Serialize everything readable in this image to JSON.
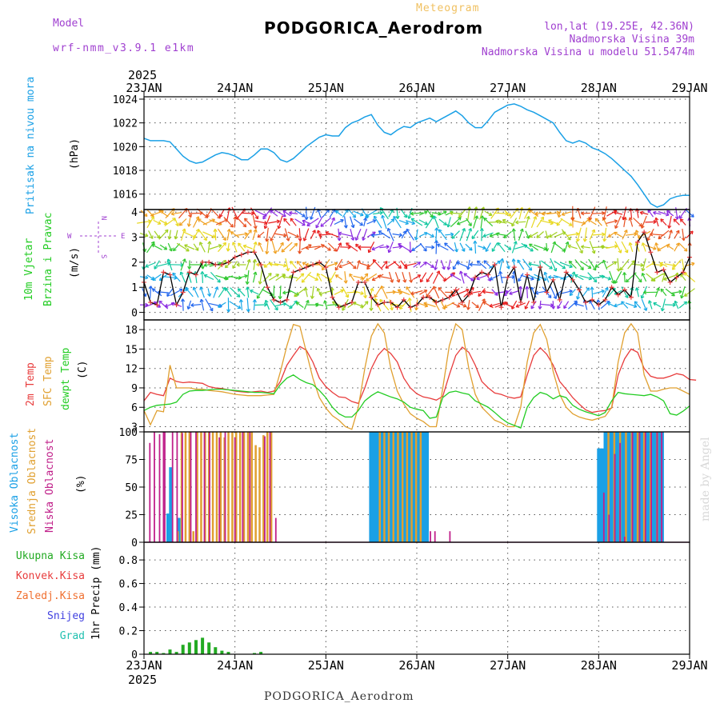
{
  "header": {
    "model_label": "Model",
    "model_value": "wrf-nmm_v3.9.1 e1km",
    "meteogram_label": "Meteogram",
    "station_title": "PODGORICA_Aerodrom",
    "coords": "lon,lat (19.25E, 42.36N)",
    "elevation": "Nadmorska Visina 39m",
    "model_elevation": "Nadmorska Visina u modelu 51.5474m",
    "year_top": "2025",
    "year_bottom": "2025",
    "footer_title": "PODGORICA_Aerodrom",
    "watermark": "made by Angel"
  },
  "colors": {
    "pressure": "#1aa0e6",
    "temp2m": "#e83c3c",
    "sfc_temp": "#e0a030",
    "dewpoint": "#22cc22",
    "high_cloud": "#1aa0e6",
    "mid_cloud": "#e0a030",
    "low_cloud": "#c0208a",
    "model_label": "#a040d0",
    "meteogram_label": "#f0c060"
  },
  "chart_data": [
    {
      "type": "line",
      "panel": "pressure",
      "ylabel_colored": "Pritisak na nivou mora",
      "ylabel_unit": "(hPa)",
      "x_ticks": [
        "23JAN",
        "24JAN",
        "25JAN",
        "26JAN",
        "27JAN",
        "28JAN",
        "29JAN"
      ],
      "yticks": [
        1016,
        1018,
        1020,
        1022,
        1024
      ],
      "ylim": [
        1014.7,
        1024.2
      ],
      "grid": true,
      "series": [
        {
          "values": [
            1020.7,
            1020.5,
            1020.5,
            1020.5,
            1020.4,
            1019.8,
            1019.2,
            1018.8,
            1018.6,
            1018.7,
            1019.0,
            1019.3,
            1019.5,
            1019.4,
            1019.2,
            1018.9,
            1018.9,
            1019.3,
            1019.8,
            1019.8,
            1019.5,
            1018.9,
            1018.7,
            1019.0,
            1019.5,
            1020.0,
            1020.4,
            1020.8,
            1021.0,
            1020.9,
            1020.9,
            1021.6,
            1022.0,
            1022.2,
            1022.5,
            1022.7,
            1021.8,
            1021.2,
            1021.0,
            1021.4,
            1021.7,
            1021.6,
            1022.0,
            1022.2,
            1022.4,
            1022.1,
            1022.4,
            1022.7,
            1023.0,
            1022.6,
            1022.0,
            1021.6,
            1021.6,
            1022.2,
            1022.9,
            1023.2,
            1023.5,
            1023.6,
            1023.4,
            1023.1,
            1022.9,
            1022.6,
            1022.3,
            1022.0,
            1021.2,
            1020.5,
            1020.3,
            1020.5,
            1020.3,
            1019.9,
            1019.7,
            1019.4,
            1019.0,
            1018.5,
            1018.0,
            1017.5,
            1016.8,
            1016.0,
            1015.2,
            1014.9,
            1015.1,
            1015.6,
            1015.8,
            1015.9,
            1015.9
          ]
        }
      ]
    },
    {
      "type": "line",
      "panel": "wind",
      "ylabel_colored": [
        "10m Vjetar",
        "Brzina i Pravac"
      ],
      "ylabel_unit": "(m/s)",
      "compass": [
        "W",
        "E",
        "N",
        "S"
      ],
      "yticks": [
        0,
        1,
        2,
        3,
        4
      ],
      "ylim": [
        -0.3,
        4.1
      ],
      "grid": true,
      "series": [
        {
          "name": "wind speed",
          "values": [
            1.2,
            0.4,
            0.3,
            1.6,
            1.5,
            0.3,
            0.8,
            1.6,
            1.5,
            2.0,
            2.0,
            1.9,
            1.9,
            2.0,
            2.2,
            2.3,
            2.4,
            2.4,
            1.9,
            1.0,
            0.5,
            0.4,
            0.5,
            1.6,
            1.7,
            1.8,
            1.9,
            2.0,
            1.8,
            0.6,
            0.2,
            0.3,
            0.4,
            1.2,
            1.2,
            0.6,
            0.3,
            0.4,
            0.4,
            0.2,
            0.5,
            0.2,
            0.3,
            0.6,
            0.6,
            0.4,
            0.5,
            0.6,
            0.9,
            0.4,
            0.7,
            1.4,
            1.6,
            1.5,
            1.9,
            0.2,
            1.4,
            1.8,
            0.4,
            1.5,
            0.4,
            1.8,
            0.8,
            1.3,
            0.5,
            1.6,
            1.3,
            0.9,
            0.4,
            0.5,
            0.3,
            0.5,
            1.0,
            0.7,
            0.9,
            0.6,
            2.8,
            3.2,
            2.4,
            1.6,
            1.7,
            1.2,
            1.4,
            1.6,
            2.2
          ]
        }
      ],
      "barb_rows": [
        0.3,
        0.8,
        1.4,
        1.9,
        2.6,
        3.1,
        3.6,
        3.95
      ]
    },
    {
      "type": "line",
      "panel": "temperature",
      "ylabel_colored": [
        "2m Temp",
        "SFC Temp",
        "dewpt Temp"
      ],
      "ylabel_unit": "(C)",
      "yticks": [
        3,
        6,
        9,
        12,
        15,
        18
      ],
      "ylim": [
        2.2,
        19.5
      ],
      "grid": true,
      "series": [
        {
          "name": "2m Temp",
          "values": [
            7.0,
            8.3,
            8.0,
            7.8,
            10.5,
            10.0,
            9.8,
            9.9,
            9.8,
            9.7,
            9.2,
            9.0,
            8.9,
            8.7,
            8.5,
            8.4,
            8.3,
            8.4,
            8.5,
            8.3,
            8.5,
            10.0,
            12.5,
            14.0,
            15.4,
            14.8,
            13.0,
            10.5,
            9.2,
            8.3,
            7.6,
            7.5,
            6.9,
            6.6,
            9.0,
            12.0,
            14.0,
            15.1,
            14.3,
            13.0,
            10.5,
            9.0,
            8.1,
            7.6,
            7.4,
            7.1,
            7.7,
            11.0,
            14.0,
            15.3,
            14.5,
            12.5,
            10.0,
            9.0,
            8.2,
            8.0,
            7.6,
            7.4,
            7.6,
            11.0,
            14.0,
            15.2,
            14.2,
            12.5,
            10.0,
            8.8,
            7.5,
            6.5,
            5.6,
            5.2,
            5.4,
            5.5,
            5.9,
            11.0,
            13.5,
            15.0,
            14.5,
            12.0,
            10.8,
            10.5,
            10.5,
            10.8,
            11.2,
            11.0,
            10.3,
            10.2
          ]
        },
        {
          "name": "SFC Temp",
          "values": [
            5.5,
            3.3,
            5.5,
            5.3,
            12.5,
            9.0,
            9.0,
            9.0,
            8.8,
            8.8,
            8.6,
            8.5,
            8.4,
            8.2,
            8.0,
            7.9,
            7.8,
            7.8,
            7.8,
            7.9,
            8.0,
            11.5,
            15.5,
            18.8,
            18.5,
            14.5,
            10.5,
            7.5,
            5.9,
            4.7,
            4.0,
            3.0,
            2.6,
            6.0,
            12.0,
            17.0,
            18.9,
            17.5,
            12.0,
            8.5,
            6.5,
            5.0,
            4.3,
            3.8,
            3.0,
            3.0,
            9.0,
            15.5,
            18.9,
            18.0,
            12.0,
            8.0,
            6.0,
            5.0,
            4.0,
            3.6,
            3.0,
            3.0,
            6.0,
            13.0,
            17.5,
            18.8,
            16.5,
            11.5,
            8.0,
            6.0,
            5.0,
            4.5,
            4.2,
            4.0,
            4.3,
            4.6,
            6.0,
            13.0,
            17.5,
            18.9,
            17.5,
            11.0,
            8.5,
            8.5,
            8.8,
            9.0,
            9.0,
            8.5,
            8.0
          ]
        },
        {
          "name": "dewpt Temp",
          "values": [
            5.5,
            6.0,
            6.3,
            6.4,
            6.5,
            6.8,
            8.0,
            8.5,
            8.6,
            8.6,
            8.7,
            8.8,
            8.8,
            8.7,
            8.6,
            8.5,
            8.4,
            8.3,
            8.3,
            8.2,
            8.1,
            9.5,
            10.5,
            11.0,
            10.3,
            9.8,
            9.5,
            8.6,
            7.5,
            6.0,
            5.0,
            4.5,
            4.5,
            5.5,
            7.0,
            7.8,
            8.4,
            8.0,
            7.6,
            7.3,
            6.8,
            6.0,
            5.7,
            5.5,
            4.3,
            4.5,
            7.5,
            8.3,
            8.5,
            8.2,
            8.0,
            7.0,
            6.5,
            6.0,
            5.2,
            4.3,
            3.6,
            3.2,
            2.8,
            6.0,
            7.5,
            8.3,
            8.0,
            7.3,
            7.8,
            7.5,
            6.3,
            5.7,
            5.3,
            5.0,
            4.7,
            5.2,
            7.0,
            8.3,
            8.1,
            8.0,
            7.9,
            7.8,
            8.0,
            7.6,
            7.0,
            5.0,
            4.8,
            5.4,
            6.2
          ]
        }
      ]
    },
    {
      "type": "bar",
      "panel": "cloud",
      "ylabel_colored": [
        "Visoka Oblacnost",
        "Srednja Oblacnost",
        "Niska Oblacnost"
      ],
      "ylabel_unit": "(%)",
      "yticks": [
        0,
        25,
        50,
        75,
        100
      ],
      "ylim": [
        0,
        100
      ],
      "grid": true,
      "series": [
        {
          "name": "Visoka Oblacnost",
          "x": [
            3.7,
            4.1,
            4.2,
            5.3,
            5.4,
            34.9,
            35.2,
            35.5,
            35.8,
            36.1,
            36.4,
            36.7,
            37.0,
            37.3,
            37.6,
            37.9,
            38.2,
            38.6,
            38.9,
            39.2,
            39.5,
            39.8,
            40.1,
            40.4,
            40.8,
            41.1,
            41.4,
            41.7,
            42.0,
            42.3,
            42.6,
            42.9,
            43.2,
            43.6,
            70.0,
            70.3,
            70.6,
            71.0,
            71.4,
            71.8,
            72.2,
            72.6,
            73.0,
            73.4,
            73.8,
            74.2,
            74.6,
            75.0,
            75.4,
            75.8,
            76.2,
            76.6,
            77.0,
            77.4,
            77.8,
            78.2,
            78.6,
            79.0,
            79.4,
            79.8
          ],
          "values": [
            26,
            68,
            65,
            22,
            22,
            100,
            100,
            100,
            100,
            100,
            100,
            100,
            100,
            100,
            100,
            100,
            100,
            100,
            100,
            100,
            100,
            100,
            100,
            100,
            100,
            100,
            100,
            100,
            100,
            100,
            100,
            100,
            100,
            100,
            85,
            85,
            85,
            100,
            100,
            100,
            100,
            100,
            100,
            100,
            100,
            100,
            100,
            100,
            100,
            100,
            100,
            100,
            100,
            100,
            100,
            100,
            100,
            100,
            100,
            100
          ]
        },
        {
          "name": "Srednja Oblacnost",
          "x": [
            5.2,
            5.8,
            6.4,
            7.0,
            7.6,
            8.2,
            8.8,
            9.4,
            10.0,
            10.6,
            11.2,
            11.8,
            12.4,
            13.0,
            13.6,
            14.2,
            14.8,
            15.4,
            16.0,
            16.6,
            17.2,
            17.8,
            18.4,
            19.0,
            19.6,
            36.3,
            37.0,
            37.7,
            38.4,
            39.1,
            39.8,
            40.5,
            41.2,
            41.9,
            42.6,
            71.5,
            72.4,
            73.3,
            74.2,
            75.1,
            76.0,
            77.0,
            78.0,
            79.0
          ],
          "values": [
            10,
            100,
            100,
            100,
            10,
            100,
            100,
            100,
            100,
            100,
            100,
            100,
            95,
            100,
            100,
            100,
            100,
            100,
            100,
            100,
            88,
            86,
            97,
            100,
            100,
            100,
            100,
            100,
            100,
            100,
            100,
            100,
            100,
            100,
            100,
            100,
            100,
            100,
            100,
            100,
            100,
            100,
            100,
            100
          ]
        },
        {
          "name": "Niska Oblacnost",
          "x": [
            0.9,
            1.6,
            2.4,
            3.0,
            3.2,
            4.4,
            5.1,
            5.9,
            7.2,
            8.0,
            9.3,
            10.1,
            11.6,
            12.5,
            14.0,
            15.2,
            16.3,
            18.6,
            19.4,
            20.3,
            44.1,
            44.8,
            47.1,
            70.8,
            71.6,
            72.5,
            73.3,
            74.0,
            75.2,
            76.3,
            77.2,
            78.1,
            79.0,
            79.7
          ],
          "values": [
            90,
            100,
            98,
            100,
            100,
            100,
            100,
            99,
            100,
            100,
            100,
            100,
            95,
            100,
            95,
            100,
            100,
            96,
            100,
            22,
            10,
            10,
            10,
            45,
            25,
            80,
            90,
            5,
            100,
            100,
            100,
            100,
            100,
            100
          ]
        }
      ]
    },
    {
      "type": "bar",
      "panel": "precip",
      "legend": [
        "Ukupna Kisa",
        "Konvek.Kisa",
        "Zaledj.Kisa",
        "Snijeg",
        "Grad"
      ],
      "legend_colors": [
        "#22aa22",
        "#e83c3c",
        "#f07030",
        "#4040e0",
        "#20c0b0"
      ],
      "ylabel": "1hr Precip (mm)",
      "yticks": [
        0,
        0.2,
        0.4,
        0.6,
        0.8
      ],
      "ylim": [
        0,
        0.95
      ],
      "grid": true,
      "series": [
        {
          "name": "Ukupna Kisa",
          "x": [
            1,
            2,
            3,
            4,
            5,
            6,
            7,
            8,
            9,
            10,
            11,
            12,
            13,
            17,
            18
          ],
          "values": [
            0.02,
            0.02,
            0.01,
            0.04,
            0.02,
            0.08,
            0.1,
            0.12,
            0.14,
            0.1,
            0.06,
            0.03,
            0.02,
            0.01,
            0.02
          ]
        }
      ]
    }
  ]
}
